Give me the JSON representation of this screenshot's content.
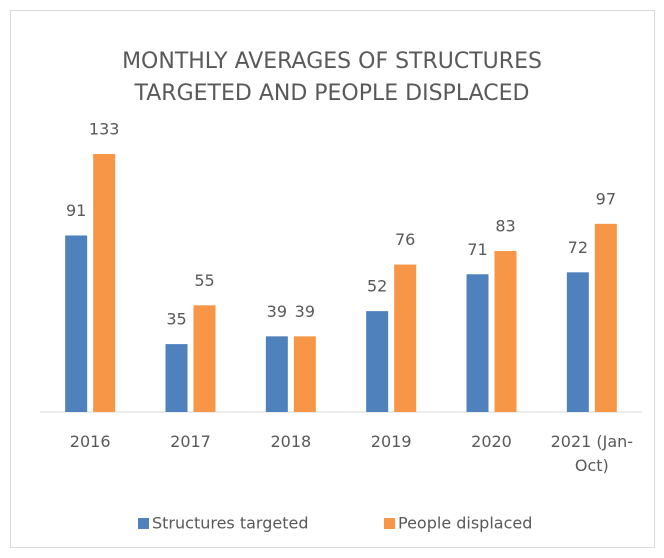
{
  "chart_data": {
    "type": "bar",
    "title": [
      "MONTHLY AVERAGES OF STRUCTURES",
      "TARGETED AND PEOPLE DISPLACED"
    ],
    "categories": [
      "2016",
      "2017",
      "2018",
      "2019",
      "2020",
      "2021 (Jan-Oct)"
    ],
    "series": [
      {
        "name": "Structures targeted",
        "color": "#4f81bd",
        "values": [
          91,
          35,
          39,
          52,
          71,
          72
        ]
      },
      {
        "name": "People displaced",
        "color": "#f79646",
        "values": [
          133,
          55,
          39,
          76,
          83,
          97
        ]
      }
    ],
    "legend": "bottom"
  }
}
